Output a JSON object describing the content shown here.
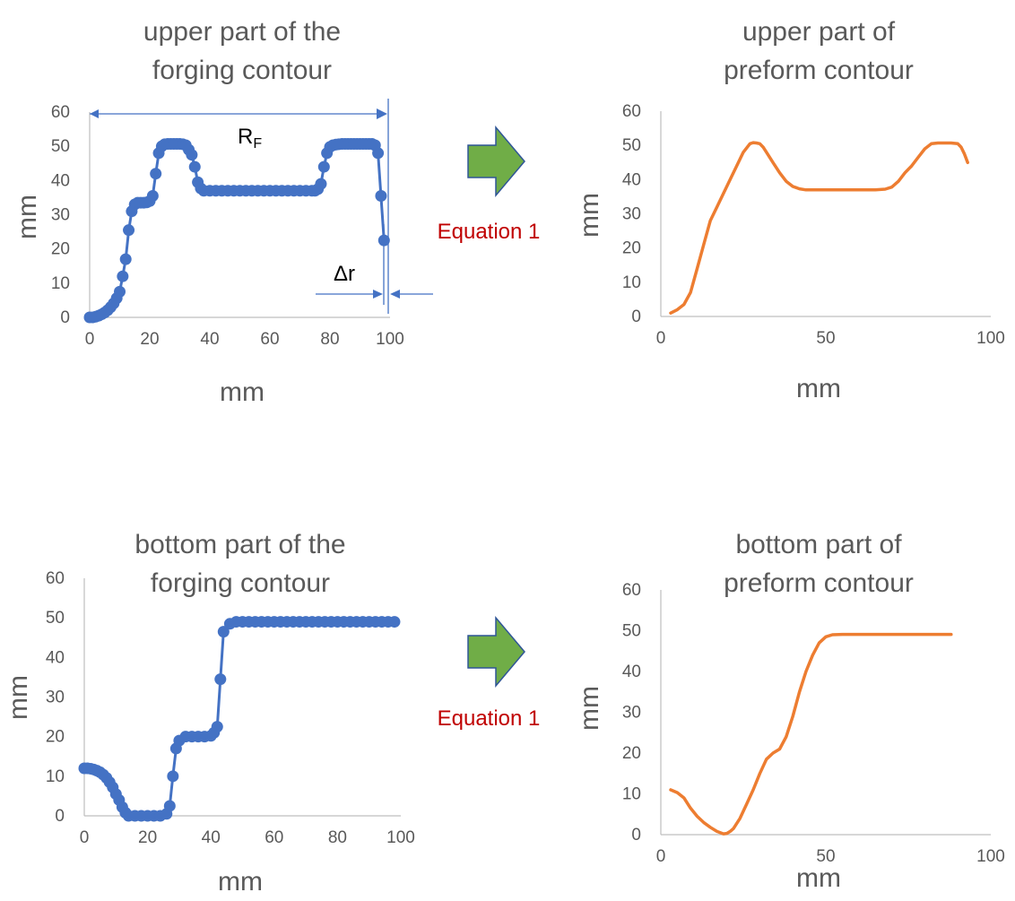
{
  "colors": {
    "forging_series": "#4472c4",
    "preform_series": "#ed7d31",
    "arrow_fill": "#70ad47",
    "arrow_stroke": "#2f5597",
    "equation_text": "#c00000",
    "dimension_line": "#4472c4"
  },
  "icons": {
    "arrow": "right-arrow-icon"
  },
  "equation_label": "Equation 1",
  "annotations": {
    "rf_main": "R",
    "rf_sub": "F",
    "dr": "Δr"
  },
  "chart_data": [
    {
      "id": "forging-upper",
      "type": "line",
      "title_lines": [
        "upper part of the",
        "forging contour"
      ],
      "xlabel": "mm",
      "ylabel": "mm",
      "xlim": [
        0,
        100
      ],
      "ylim": [
        0,
        60
      ],
      "xticks": [
        0,
        20,
        40,
        60,
        80,
        100
      ],
      "yticks": [
        0,
        10,
        20,
        30,
        40,
        50,
        60
      ],
      "grid": false,
      "legend": "none",
      "markers": true,
      "series": [
        {
          "x": [
            0,
            1,
            2,
            3,
            4,
            5,
            6,
            7,
            8,
            9,
            10,
            11,
            12,
            13,
            14,
            15,
            16,
            17,
            18,
            19,
            20,
            21,
            22,
            23,
            24,
            25,
            26,
            27,
            28,
            29,
            30,
            31,
            32,
            33,
            34,
            35,
            36,
            37,
            38,
            40,
            42,
            44,
            46,
            48,
            50,
            52,
            54,
            56,
            58,
            60,
            62,
            64,
            66,
            68,
            70,
            72,
            74,
            75,
            76,
            77,
            78,
            79,
            80,
            81,
            82,
            83,
            84,
            85,
            86,
            87,
            88,
            89,
            90,
            91,
            92,
            93,
            94,
            95,
            96,
            97,
            98
          ],
          "y": [
            0,
            0,
            0.2,
            0.5,
            0.9,
            1.4,
            2.1,
            3,
            4.1,
            5.6,
            7.5,
            12,
            17,
            25.5,
            31,
            33,
            33.5,
            33.5,
            33.5,
            33.6,
            34,
            35.5,
            42,
            48,
            50,
            50.6,
            50.7,
            50.7,
            50.7,
            50.7,
            50.7,
            50.6,
            50.3,
            49,
            47.5,
            44,
            39.5,
            37.7,
            37,
            37,
            37,
            37,
            37,
            37,
            37,
            37,
            37,
            37,
            37,
            37,
            37,
            37,
            37,
            37,
            37,
            37,
            37,
            37,
            37.5,
            39,
            44,
            48,
            49.8,
            50.3,
            50.5,
            50.6,
            50.7,
            50.7,
            50.7,
            50.7,
            50.7,
            50.7,
            50.7,
            50.7,
            50.7,
            50.7,
            50.7,
            50.3,
            48,
            35.5,
            22.5
          ]
        }
      ]
    },
    {
      "id": "preform-upper",
      "type": "line",
      "title_lines": [
        "upper part of",
        "preform contour"
      ],
      "xlabel": "mm",
      "ylabel": "mm",
      "xlim": [
        0,
        100
      ],
      "ylim": [
        0,
        60
      ],
      "xticks": [
        0,
        50,
        100
      ],
      "yticks": [
        0,
        10,
        20,
        30,
        40,
        50,
        60
      ],
      "grid": false,
      "legend": "none",
      "markers": false,
      "series": [
        {
          "x": [
            3,
            5,
            7,
            9,
            11,
            13,
            15,
            17,
            19,
            21,
            23,
            25,
            27,
            28,
            29,
            30,
            31,
            32,
            34,
            36,
            38,
            40,
            42,
            44,
            46,
            50,
            55,
            60,
            65,
            68,
            70,
            72,
            74,
            76,
            78,
            80,
            82,
            84,
            86,
            88,
            90,
            91,
            92,
            93
          ],
          "y": [
            1,
            2,
            3.5,
            7,
            14,
            21,
            28,
            32,
            36,
            40,
            44,
            48,
            50.5,
            50.8,
            50.7,
            50.5,
            49.5,
            48,
            45,
            42,
            39.5,
            38,
            37.3,
            37,
            37,
            37,
            37,
            37,
            37,
            37.2,
            37.8,
            39.5,
            42,
            44,
            46.5,
            49,
            50.5,
            50.7,
            50.7,
            50.7,
            50.5,
            49.5,
            47.5,
            45
          ]
        }
      ]
    },
    {
      "id": "forging-bottom",
      "type": "line",
      "title_lines": [
        "bottom part of the",
        "forging contour"
      ],
      "xlabel": "mm",
      "ylabel": "mm",
      "xlim": [
        0,
        100
      ],
      "ylim": [
        0,
        60
      ],
      "xticks": [
        0,
        20,
        40,
        60,
        80,
        100
      ],
      "yticks": [
        0,
        10,
        20,
        30,
        40,
        50,
        60
      ],
      "grid": false,
      "legend": "none",
      "markers": true,
      "series": [
        {
          "x": [
            0,
            1,
            2,
            3,
            4,
            5,
            6,
            7,
            8,
            9,
            10,
            11,
            12,
            13,
            14,
            16,
            18,
            20,
            22,
            24,
            26,
            27,
            28,
            29,
            30,
            32,
            34,
            36,
            38,
            40,
            41,
            42,
            43,
            44,
            46,
            48,
            50,
            52,
            54,
            56,
            58,
            60,
            62,
            64,
            66,
            68,
            70,
            72,
            74,
            76,
            78,
            80,
            82,
            84,
            86,
            88,
            90,
            92,
            94,
            96,
            98
          ],
          "y": [
            12,
            12,
            11.9,
            11.7,
            11.4,
            11,
            10.4,
            9.6,
            8.5,
            7.2,
            5.5,
            4,
            2.2,
            0.8,
            0,
            0,
            0,
            0,
            0,
            0,
            0.5,
            2.5,
            10,
            17,
            19,
            20,
            20,
            20,
            20,
            20.2,
            21,
            22.5,
            34.5,
            46.5,
            48.5,
            49,
            49,
            49,
            49,
            49,
            49,
            49,
            49,
            49,
            49,
            49,
            49,
            49,
            49,
            49,
            49,
            49,
            49,
            49,
            49,
            49,
            49,
            49,
            49,
            49,
            49
          ]
        }
      ]
    },
    {
      "id": "preform-bottom",
      "type": "line",
      "title_lines": [
        "bottom part of",
        "preform contour"
      ],
      "xlabel": "mm",
      "ylabel": "mm",
      "xlim": [
        0,
        100
      ],
      "ylim": [
        0,
        60
      ],
      "xticks": [
        0,
        50,
        100
      ],
      "yticks": [
        0,
        10,
        20,
        30,
        40,
        50,
        60
      ],
      "grid": false,
      "legend": "none",
      "markers": false,
      "series": [
        {
          "x": [
            3,
            5,
            7,
            9,
            11,
            13,
            15,
            17,
            19,
            20,
            21,
            22,
            24,
            26,
            28,
            30,
            32,
            34,
            36,
            38,
            40,
            42,
            44,
            46,
            48,
            50,
            52,
            55,
            60,
            70,
            80,
            88
          ],
          "y": [
            11,
            10.3,
            9,
            6.5,
            4.5,
            3,
            1.8,
            0.8,
            0.2,
            0.3,
            0.8,
            1.5,
            4,
            7.5,
            11,
            15,
            18.5,
            20,
            21,
            24,
            29,
            35,
            40,
            44,
            47,
            48.5,
            49,
            49.1,
            49.1,
            49.1,
            49.1,
            49.1
          ]
        }
      ]
    }
  ]
}
